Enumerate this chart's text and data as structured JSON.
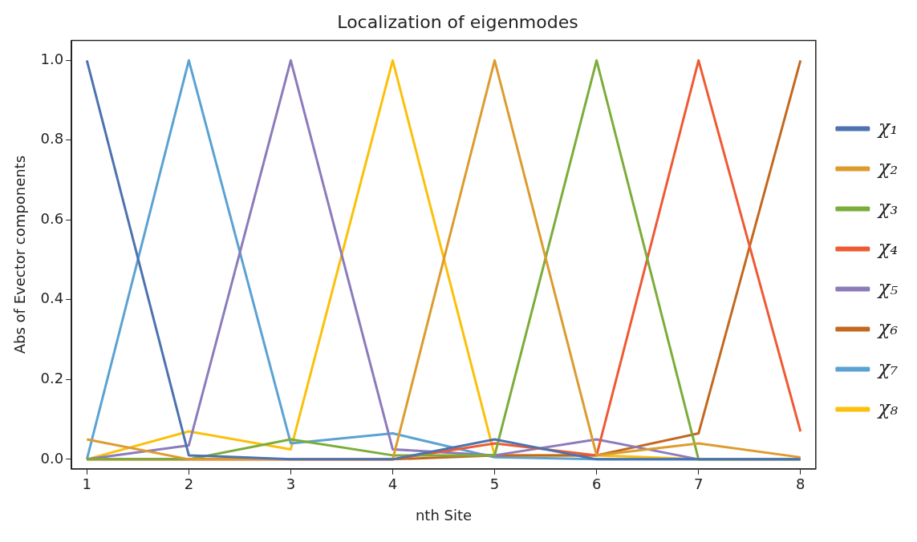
{
  "chart_data": {
    "type": "line",
    "title": "Localization of eigenmodes",
    "xlabel": "nth Site",
    "ylabel": "Abs of Evector components",
    "x": [
      1,
      2,
      3,
      4,
      5,
      6,
      7,
      8
    ],
    "series": [
      {
        "name": "χ₁",
        "color": "#4c72b0",
        "values": [
          1,
          0.01,
          0,
          0,
          0.05,
          0,
          0,
          0
        ]
      },
      {
        "name": "χ₂",
        "color": "#dd9b2f",
        "values": [
          0.05,
          0,
          0,
          0,
          1,
          0.01,
          0.04,
          0.005
        ]
      },
      {
        "name": "χ₃",
        "color": "#7cac3a",
        "values": [
          0,
          0,
          0.05,
          0.01,
          0.01,
          1,
          0,
          0
        ]
      },
      {
        "name": "χ₄",
        "color": "#ee5a34",
        "values": [
          0,
          0,
          0,
          0,
          0.04,
          0.01,
          1,
          0.07
        ]
      },
      {
        "name": "χ₅",
        "color": "#8c7bbb",
        "values": [
          0,
          0.035,
          1,
          0.025,
          0.01,
          0.05,
          0,
          0
        ]
      },
      {
        "name": "χ₆",
        "color": "#c2691f",
        "values": [
          0,
          0,
          0,
          0,
          0.01,
          0.01,
          0.065,
          1
        ]
      },
      {
        "name": "χ₇",
        "color": "#5aa2d3",
        "values": [
          0,
          1,
          0.04,
          0.065,
          0.005,
          0,
          0,
          0
        ]
      },
      {
        "name": "χ₈",
        "color": "#fbc00a",
        "values": [
          0,
          0.07,
          0.025,
          1,
          0.01,
          0.01,
          0,
          0
        ]
      }
    ],
    "xlim": [
      0.85,
      8.15
    ],
    "xticks": [
      1,
      2,
      3,
      4,
      5,
      6,
      7,
      8
    ],
    "ylim": [
      -0.024,
      1.05
    ],
    "yticks": [
      {
        "value": 0,
        "label": "0.0"
      },
      {
        "value": 0.2,
        "label": "0.2"
      },
      {
        "value": 0.4,
        "label": "0.4"
      },
      {
        "value": 0.6,
        "label": "0.6"
      },
      {
        "value": 0.8,
        "label": "0.8"
      },
      {
        "value": 1,
        "label": "1.0"
      }
    ],
    "grid": false,
    "legend": "right",
    "marker": "none",
    "line_style": "solid"
  }
}
